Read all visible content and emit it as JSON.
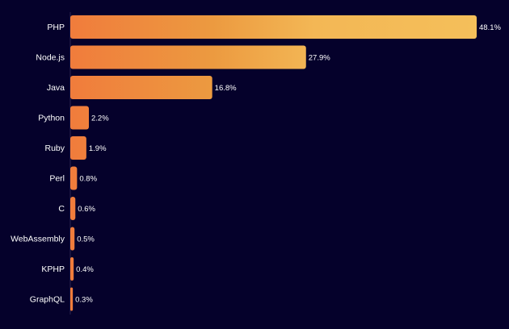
{
  "chart_data": {
    "type": "bar",
    "orientation": "horizontal",
    "title": "",
    "xlabel": "",
    "ylabel": "",
    "xlim": [
      0,
      48.1
    ],
    "grid": false,
    "legend": "none",
    "value_suffix": "%",
    "categories": [
      "PHP",
      "Node.js",
      "Java",
      "Python",
      "Ruby",
      "Perl",
      "C",
      "WebAssembly",
      "KPHP",
      "GraphQL"
    ],
    "values": [
      48.1,
      27.9,
      16.8,
      2.2,
      1.9,
      0.8,
      0.6,
      0.5,
      0.4,
      0.3
    ],
    "value_labels": [
      "48.1%",
      "27.9%",
      "16.8%",
      "2.2%",
      "1.9%",
      "0.8%",
      "0.6%",
      "0.5%",
      "0.4%",
      "0.3%"
    ]
  },
  "colors": {
    "background": "#05012b",
    "bar_start": "#f07c3c",
    "bar_end": "#f4bf5a",
    "text": "#ffffff"
  }
}
